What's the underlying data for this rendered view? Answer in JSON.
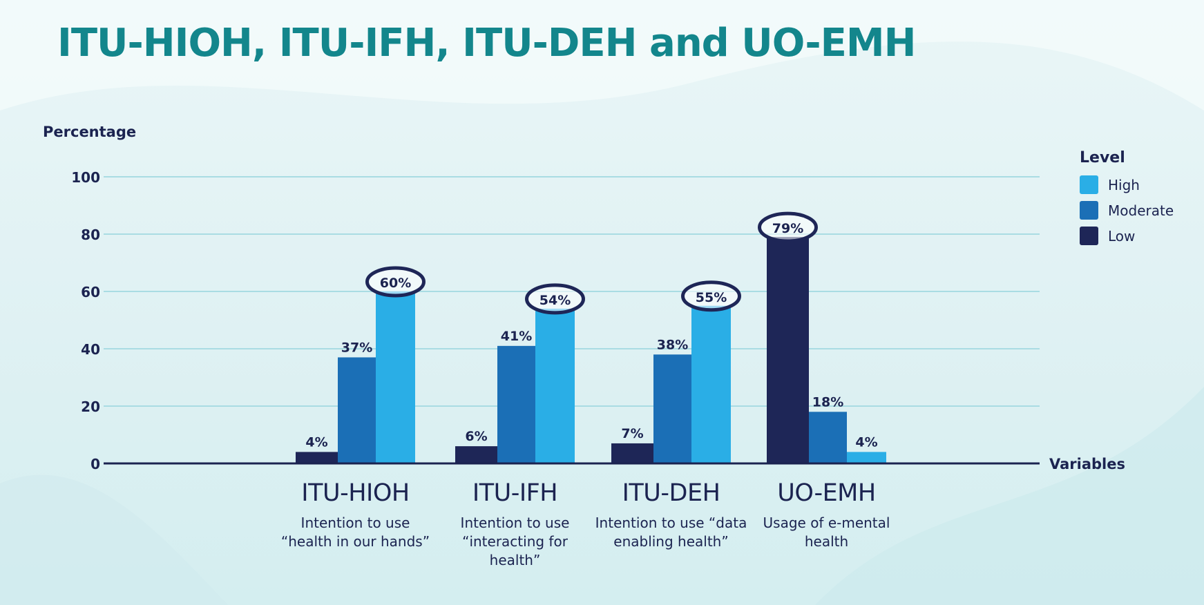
{
  "title": "ITU-HIOH, ITU-IFH, ITU-DEH and UO-EMH",
  "chart_data": {
    "type": "bar",
    "title": "ITU-HIOH, ITU-IFH, ITU-DEH and UO-EMH",
    "ylabel": "Percentage",
    "xlabel": "Variables",
    "ylim": [
      0,
      100
    ],
    "yticks": [
      "0",
      "20",
      "40",
      "60",
      "80",
      "100"
    ],
    "grid": true,
    "legend_title": "Level",
    "legend_position": "right",
    "categories": [
      "ITU-HIOH",
      "ITU-IFH",
      "ITU-DEH",
      "UO-EMH"
    ],
    "category_descriptions": [
      "Intention to use “health in our hands”",
      "Intention to use “interacting for health”",
      "Intention to use “data enabling health”",
      "Usage of e-mental health"
    ],
    "series": [
      {
        "name": "Low",
        "values": [
          4,
          6,
          7,
          79
        ],
        "labels": [
          "4%",
          "6%",
          "7%",
          "79%"
        ],
        "color": "#1e2657"
      },
      {
        "name": "Moderate",
        "values": [
          37,
          41,
          38,
          18
        ],
        "labels": [
          "37%",
          "41%",
          "38%",
          "18%"
        ],
        "color": "#1b6fb6"
      },
      {
        "name": "High",
        "values": [
          60,
          54,
          55,
          4
        ],
        "labels": [
          "60%",
          "54%",
          "55%",
          "4%"
        ],
        "color": "#2aaee6"
      }
    ],
    "legend_order": [
      "High",
      "Moderate",
      "Low"
    ],
    "highlighted": [
      {
        "category": 0,
        "series": "High"
      },
      {
        "category": 1,
        "series": "High"
      },
      {
        "category": 2,
        "series": "High"
      },
      {
        "category": 3,
        "series": "Low"
      }
    ]
  }
}
